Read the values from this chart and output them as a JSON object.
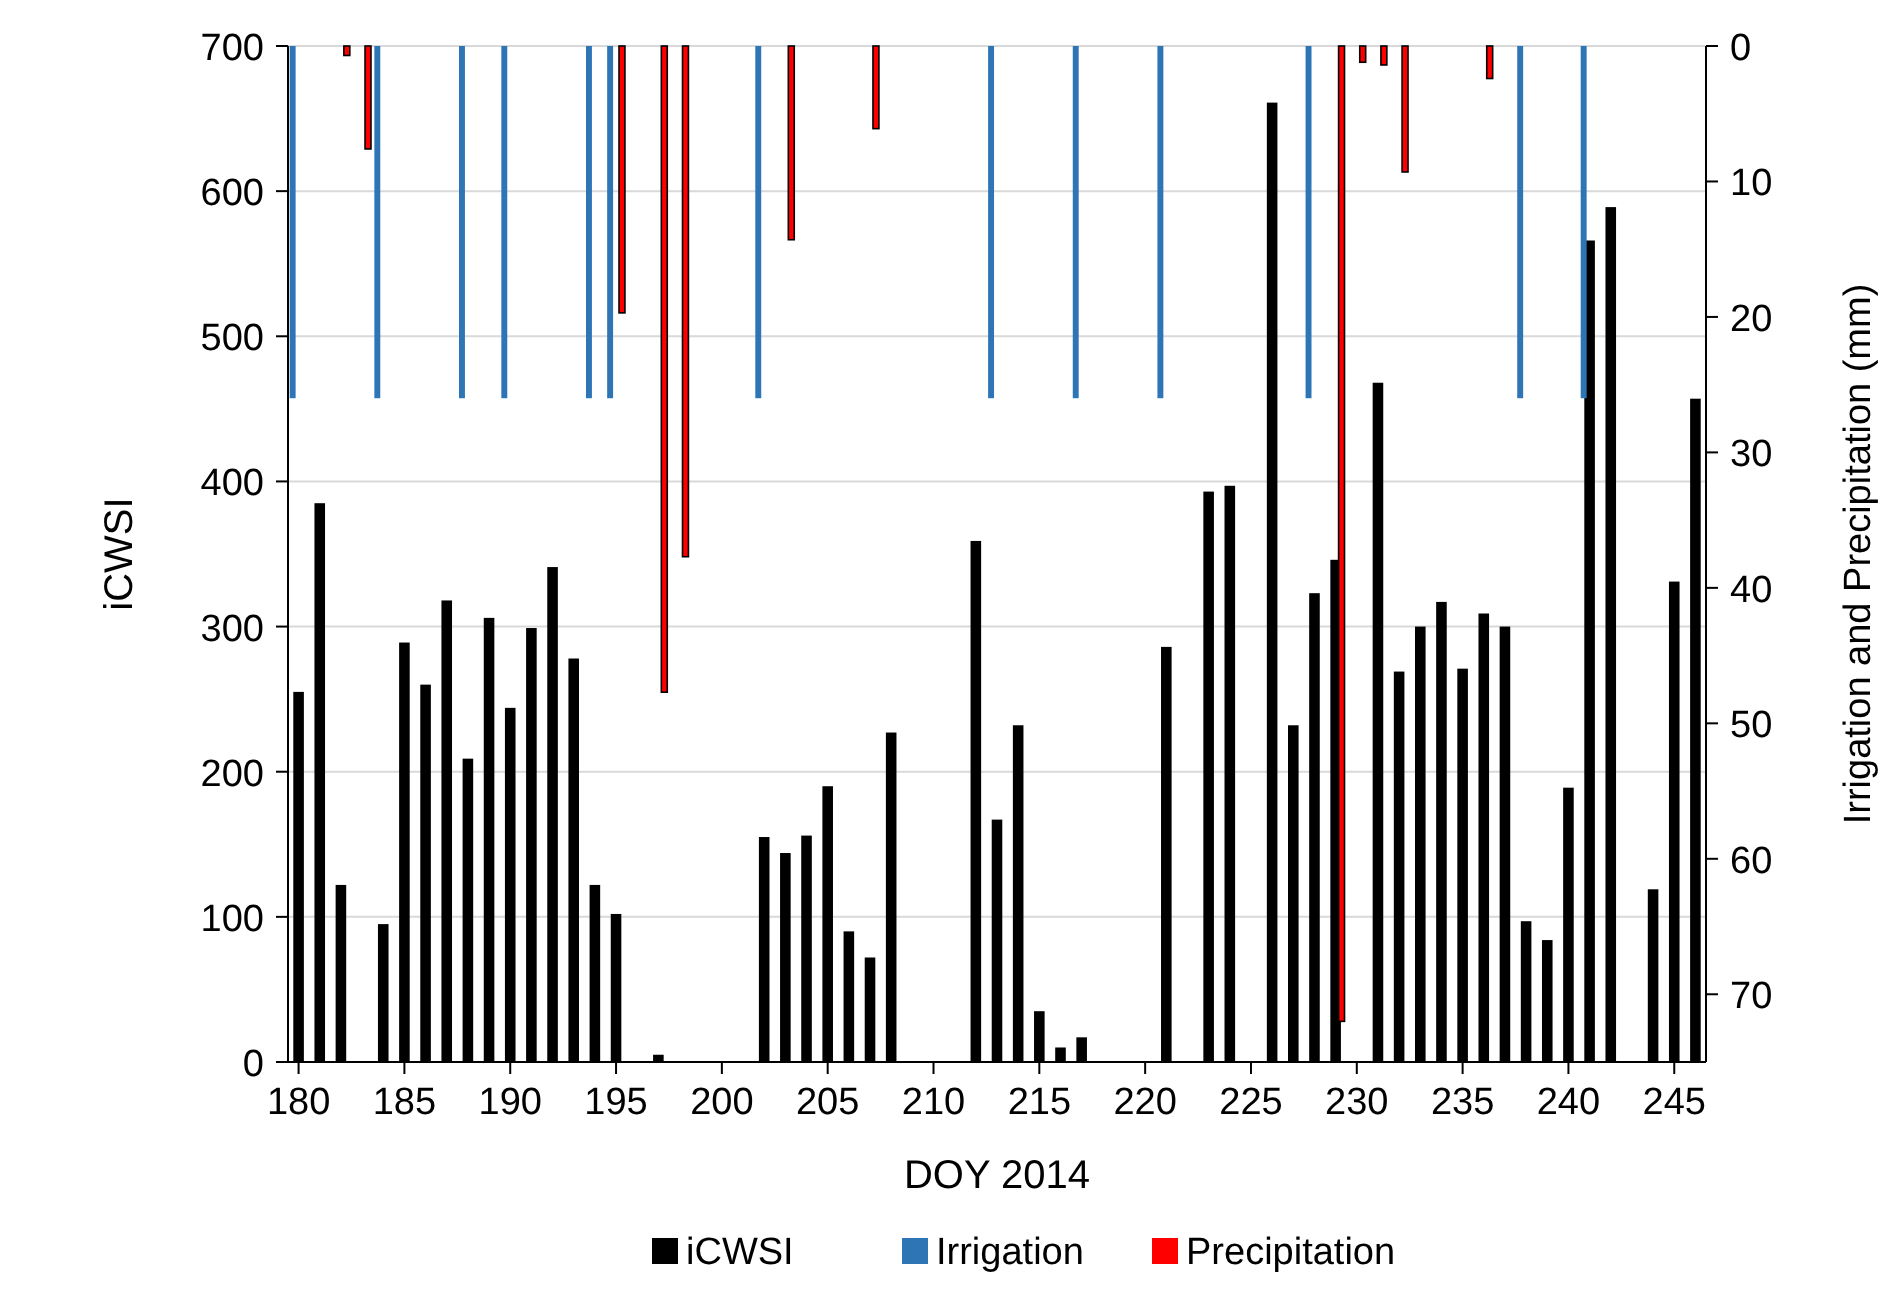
{
  "chart_data": {
    "type": "bar",
    "xlabel": "DOY 2014",
    "ylabel": "iCWSI",
    "y2label": "Irrigation and Precipitation (mm)",
    "xlim": [
      179.5,
      246.5
    ],
    "xticks": [
      180,
      185,
      190,
      195,
      200,
      205,
      210,
      215,
      220,
      225,
      230,
      235,
      240,
      245
    ],
    "ylim": [
      0,
      700
    ],
    "yticks": [
      0,
      100,
      200,
      300,
      400,
      500,
      600,
      700
    ],
    "y2lim": [
      75,
      0
    ],
    "y2ticks": [
      0,
      10,
      20,
      30,
      40,
      50,
      60,
      70
    ],
    "grid": "y",
    "legend": "bottom",
    "series": [
      {
        "name": "iCWSI",
        "color": "#000000",
        "x": [
          180,
          181,
          182,
          184,
          185,
          186,
          187,
          188,
          189,
          190,
          191,
          192,
          193,
          194,
          195,
          197,
          202,
          203,
          204,
          205,
          206,
          207,
          208,
          212,
          213,
          214,
          215,
          216,
          217,
          221,
          223,
          224,
          226,
          227,
          228,
          229,
          231,
          232,
          233,
          234,
          235,
          236,
          237,
          238,
          239,
          240,
          241,
          242,
          244,
          245,
          246
        ],
        "values": [
          255,
          385,
          122,
          95,
          289,
          260,
          318,
          209,
          306,
          244,
          299,
          341,
          278,
          122,
          102,
          5,
          155,
          144,
          156,
          190,
          90,
          72,
          227,
          359,
          167,
          232,
          35,
          10,
          17,
          286,
          393,
          397,
          661,
          232,
          323,
          346,
          468,
          269,
          300,
          317,
          271,
          309,
          300,
          97,
          84,
          189,
          566,
          589,
          119,
          331,
          457
        ]
      },
      {
        "name": "Irrigation",
        "color": "#2e75b6",
        "axis": "y2",
        "x": [
          180,
          184,
          188,
          190,
          194,
          195,
          202,
          213,
          217,
          221,
          228,
          238,
          241
        ],
        "values": [
          26,
          26,
          26,
          26,
          26,
          26,
          26,
          26,
          26,
          26,
          26,
          26,
          26
        ]
      },
      {
        "name": "Precipitation",
        "color": "#ff0000",
        "axis": "y2",
        "x": [
          182,
          183,
          195,
          197,
          198,
          203,
          207,
          229,
          230,
          231,
          232,
          236
        ],
        "values": [
          0.7,
          7.6,
          19.7,
          47.7,
          37.7,
          14.3,
          6.1,
          72,
          1.2,
          1.4,
          9.3,
          2.4
        ]
      }
    ]
  }
}
